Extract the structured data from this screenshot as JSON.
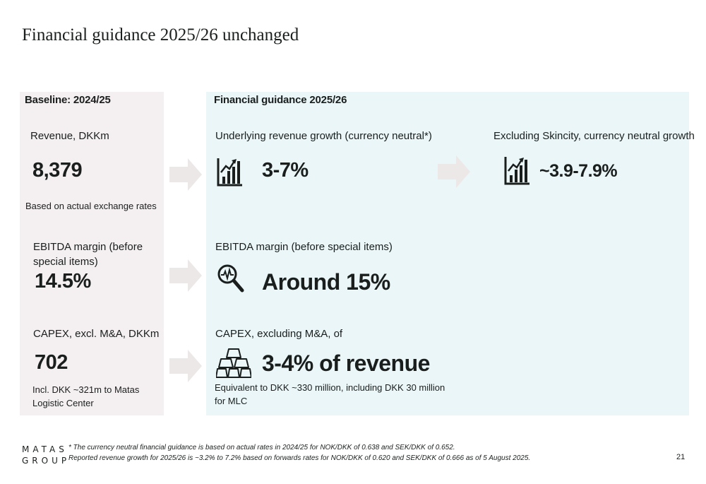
{
  "title": "Financial guidance 2025/26 unchanged",
  "baseline": {
    "heading": "Baseline: 2024/25",
    "revenue": {
      "label": "Revenue, DKKm",
      "value": "8,379",
      "note": "Based on actual exchange rates"
    },
    "ebitda": {
      "label_line1": "EBITDA margin (before",
      "label_line2": "special items)",
      "value": "14.5%"
    },
    "capex": {
      "label": "CAPEX, excl. M&A, DKKm",
      "value": "702",
      "note_line1": "Incl. DKK ~321m to Matas",
      "note_line2": "Logistic Center"
    }
  },
  "guidance": {
    "heading": "Financial guidance 2025/26",
    "revenue": {
      "label": "Underlying revenue growth (currency neutral*)",
      "value": "3-7%",
      "icon": "bar-chart-growth-icon"
    },
    "excl_skincity": {
      "label": "Excluding Skincity, currency neutral growth",
      "value": "~3.9-7.9%",
      "icon": "bar-chart-growth-icon"
    },
    "ebitda": {
      "label": "EBITDA margin (before special items)",
      "value": "Around 15%",
      "icon": "magnifier-pulse-icon"
    },
    "capex": {
      "label": "CAPEX, excluding M&A, of",
      "value": "3-4% of revenue",
      "note_line1": "Equivalent to DKK ~330 million, including DKK 30 million",
      "note_line2": "for MLC",
      "icon": "gold-bars-icon"
    }
  },
  "footnote": {
    "line1": "* The currency neutral financial guidance is based on actual rates in 2024/25 for NOK/DKK of 0.638 and SEK/DKK of 0.652.",
    "line2": "Reported revenue growth for 2025/26 is ~3.2% to 7.2% based on forwards rates for NOK/DKK of 0.620 and SEK/DKK of 0.666 as of 5 August 2025."
  },
  "logo": {
    "line1": "MATAS",
    "line2": "GROUP"
  },
  "page_number": "21",
  "colors": {
    "baseline_bg": "#f4eff0",
    "guidance_bg": "#eaf6f7",
    "arrow": "#ede8e8",
    "text": "#1a1f1e"
  }
}
